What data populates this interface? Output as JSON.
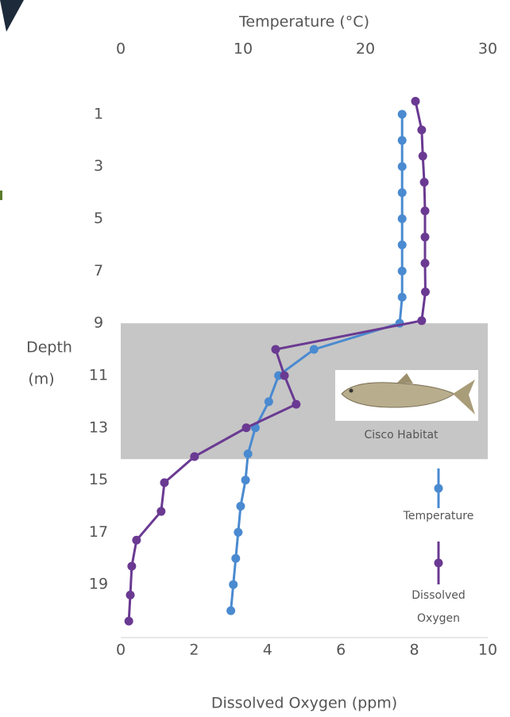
{
  "chart_data": {
    "type": "scatter",
    "title_top": "Temperature (°C)",
    "title_bottom": "Dissolved Oxygen (ppm)",
    "y_label": [
      "Depth",
      "(m)"
    ],
    "xlim": [
      0,
      30
    ],
    "xticks": [
      0,
      10,
      20,
      30
    ],
    "x2lim": [
      0,
      10
    ],
    "x2ticks": [
      0,
      2,
      4,
      6,
      8,
      10
    ],
    "ylim": [
      0,
      21
    ],
    "y_inverted": true,
    "yticks": [
      1,
      3,
      5,
      7,
      9,
      11,
      13,
      15,
      17,
      19
    ],
    "grid": false,
    "band": {
      "label": "Cisco Habitat",
      "range": [
        9,
        14.2
      ],
      "color": "#c6c6c6"
    },
    "series": [
      {
        "name": "Temperature",
        "color": "#4a8ad0",
        "axis": "x",
        "depth": [
          1,
          2,
          3,
          4,
          5,
          6,
          7,
          8,
          9,
          10,
          11,
          12,
          13,
          14,
          15,
          16,
          17,
          18,
          19,
          20
        ],
        "values": [
          23,
          23,
          23,
          23,
          23,
          23,
          23,
          23,
          22.8,
          15.8,
          12.9,
          12.1,
          11,
          10.4,
          10.2,
          9.8,
          9.6,
          9.4,
          9.2,
          9
        ]
      },
      {
        "name": "Dissolved Oxygen",
        "color": "#6a3a92",
        "axis": "x2",
        "depth": [
          0.5,
          1.6,
          2.6,
          3.6,
          4.7,
          5.7,
          6.7,
          7.8,
          8.9,
          10,
          11,
          12.1,
          13,
          14.1,
          15.1,
          16.2,
          17.3,
          18.3,
          19.4,
          20.4
        ],
        "values": [
          8.03,
          8.2,
          8.23,
          8.27,
          8.29,
          8.29,
          8.29,
          8.3,
          8.2,
          4.22,
          4.46,
          4.78,
          3.42,
          2.01,
          1.19,
          1.1,
          0.43,
          0.3,
          0.26,
          0.22
        ]
      }
    ]
  }
}
